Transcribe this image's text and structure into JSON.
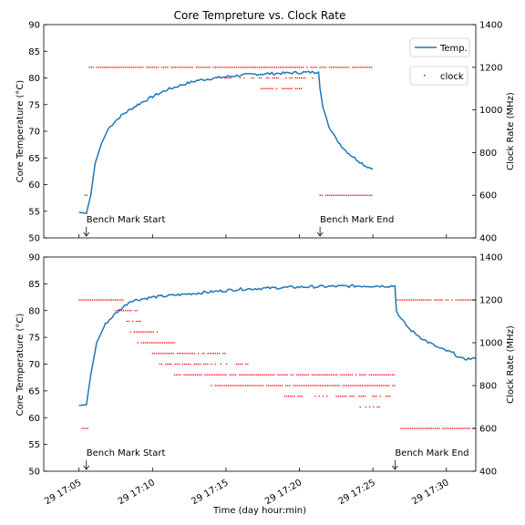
{
  "chart_data": [
    {
      "type": "line",
      "title": "Core Tempreture vs. Clock Rate",
      "ylabel": "Core Temperature (°C)",
      "y2label": "Clock Rate (MHz)",
      "ylim": [
        50,
        90
      ],
      "y2lim": [
        400,
        1400
      ],
      "yticks": [
        "50",
        "55",
        "60",
        "65",
        "70",
        "75",
        "80",
        "85",
        "90"
      ],
      "y2ticks": [
        "400",
        "600",
        "800",
        "1000",
        "1200",
        "1400"
      ],
      "legend": {
        "placement": "top-right",
        "line_label": "Temp.",
        "scatter_label": "clock"
      },
      "series": [
        {
          "name": "Temp.",
          "type": "line",
          "color": "#1f77b4",
          "points": [
            [
              5.0,
              54.8
            ],
            [
              5.5,
              54.6
            ],
            [
              5.8,
              58
            ],
            [
              6.1,
              64
            ],
            [
              6.5,
              67.5
            ],
            [
              7.0,
              70.5
            ],
            [
              7.5,
              72
            ],
            [
              8.0,
              73.2
            ],
            [
              9.0,
              75
            ],
            [
              10.0,
              76.5
            ],
            [
              11.0,
              77.8
            ],
            [
              12.0,
              78.7
            ],
            [
              13.0,
              79.5
            ],
            [
              14.0,
              79.9
            ],
            [
              15.0,
              80.2
            ],
            [
              16.0,
              80.5
            ],
            [
              17.0,
              80.7
            ],
            [
              18.0,
              80.8
            ],
            [
              19.0,
              80.9
            ],
            [
              20.0,
              81
            ],
            [
              21.0,
              81.1
            ],
            [
              21.3,
              81.1
            ],
            [
              21.4,
              78
            ],
            [
              21.6,
              74.5
            ],
            [
              22.0,
              71
            ],
            [
              22.5,
              68.5
            ],
            [
              23.0,
              66.8
            ],
            [
              23.5,
              65.5
            ],
            [
              24.0,
              64.5
            ],
            [
              24.5,
              63.5
            ],
            [
              25.0,
              62.9
            ]
          ]
        },
        {
          "name": "clock",
          "type": "scatter",
          "color": "#ff0000",
          "segments": [
            {
              "mhz": 600,
              "x_from": 5.4,
              "x_to": 5.6
            },
            {
              "mhz": 1200,
              "x_from": 5.7,
              "x_to": 21.3
            },
            {
              "mhz": 1150,
              "x_from": 14.4,
              "x_to": 21.0,
              "sparse": true
            },
            {
              "mhz": 1100,
              "x_from": 17.4,
              "x_to": 20.4,
              "sparse": true
            },
            {
              "mhz": 1200,
              "x_from": 21.4,
              "x_to": 25.0
            },
            {
              "mhz": 600,
              "x_from": 21.4,
              "x_to": 25.0
            }
          ]
        }
      ],
      "annotations": [
        {
          "text": "Bench Mark Start",
          "x": 5.5
        },
        {
          "text": "Bench Mark End",
          "x": 21.4
        }
      ]
    },
    {
      "type": "line",
      "ylabel": "Core Temperature (°C)",
      "y2label": "Clock Rate (MHz)",
      "xlabel": "Time (day hour:min)",
      "xlim": [
        "29 17:05",
        "29 17:32"
      ],
      "xticks": [
        "29 17:05",
        "29 17:10",
        "29 17:15",
        "29 17:20",
        "29 17:25",
        "29 17:30"
      ],
      "ylim": [
        50,
        90
      ],
      "y2lim": [
        400,
        1400
      ],
      "yticks": [
        "50",
        "55",
        "60",
        "65",
        "70",
        "75",
        "80",
        "85",
        "90"
      ],
      "y2ticks": [
        "400",
        "600",
        "800",
        "1000",
        "1200",
        "1400"
      ],
      "series": [
        {
          "name": "Temp.",
          "type": "line",
          "color": "#1f77b4",
          "points": [
            [
              5.0,
              62.3
            ],
            [
              5.5,
              62.4
            ],
            [
              5.8,
              68
            ],
            [
              6.2,
              74
            ],
            [
              6.8,
              77.5
            ],
            [
              7.5,
              79.5
            ],
            [
              8.5,
              81.8
            ],
            [
              10.0,
              82.5
            ],
            [
              12.0,
              83
            ],
            [
              14.0,
              83.5
            ],
            [
              16.0,
              84
            ],
            [
              18.0,
              84.2
            ],
            [
              20.0,
              84.4
            ],
            [
              22.0,
              84.5
            ],
            [
              24.0,
              84.6
            ],
            [
              26.5,
              84.6
            ],
            [
              26.6,
              80
            ],
            [
              26.9,
              78.5
            ],
            [
              27.5,
              76.5
            ],
            [
              28.5,
              74.5
            ],
            [
              29.5,
              73
            ],
            [
              30.5,
              72
            ],
            [
              31.0,
              71
            ],
            [
              32.0,
              71
            ]
          ]
        },
        {
          "name": "clock",
          "type": "scatter",
          "color": "#ff0000",
          "segments": [
            {
              "mhz": 600,
              "x_from": 5.2,
              "x_to": 5.6
            },
            {
              "mhz": 1200,
              "x_from": 5.0,
              "x_to": 8.0
            },
            {
              "mhz": 1150,
              "x_from": 7.5,
              "x_to": 9.0
            },
            {
              "mhz": 1100,
              "x_from": 8.0,
              "x_to": 9.5,
              "sparse": true
            },
            {
              "mhz": 1050,
              "x_from": 8.5,
              "x_to": 10.5
            },
            {
              "mhz": 1000,
              "x_from": 9.0,
              "x_to": 11.5
            },
            {
              "mhz": 950,
              "x_from": 10.0,
              "x_to": 15.0
            },
            {
              "mhz": 900,
              "x_from": 10.5,
              "x_to": 16.5,
              "sparse": true
            },
            {
              "mhz": 850,
              "x_from": 11.5,
              "x_to": 26.5
            },
            {
              "mhz": 800,
              "x_from": 14.0,
              "x_to": 26.5
            },
            {
              "mhz": 750,
              "x_from": 19.0,
              "x_to": 26.5,
              "sparse": true
            },
            {
              "mhz": 700,
              "x_from": 24.0,
              "x_to": 25.5,
              "sparse": true
            },
            {
              "mhz": 1200,
              "x_from": 26.6,
              "x_to": 32.0
            },
            {
              "mhz": 600,
              "x_from": 26.9,
              "x_to": 32.0
            }
          ]
        }
      ],
      "annotations": [
        {
          "text": "Bench Mark Start",
          "x": 5.5
        },
        {
          "text": "Bench Mark End",
          "x": 26.5
        }
      ]
    }
  ]
}
